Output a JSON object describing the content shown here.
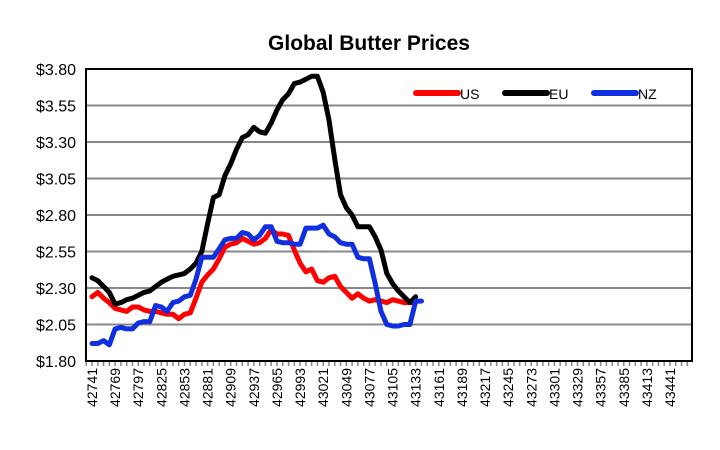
{
  "chart_data": {
    "type": "line",
    "title": "Global Butter Prices",
    "xlabel": "",
    "ylabel": "",
    "ylim": [
      1.8,
      3.8
    ],
    "ytick_step": 0.25,
    "y_tick_labels": [
      "$1.80",
      "$2.05",
      "$2.30",
      "$2.55",
      "$2.80",
      "$3.05",
      "$3.30",
      "$3.55",
      "$3.80"
    ],
    "xlim": [
      42734,
      43464
    ],
    "x_tick_labels": [
      "42741",
      "42769",
      "42797",
      "42825",
      "42853",
      "42881",
      "42909",
      "42937",
      "42965",
      "42993",
      "43021",
      "43049",
      "43077",
      "43105",
      "43133",
      "43161",
      "43189",
      "43217",
      "43245",
      "43273",
      "43301",
      "43329",
      "43357",
      "43385",
      "43413",
      "43441"
    ],
    "x_tick_values": [
      42741,
      42769,
      42797,
      42825,
      42853,
      42881,
      42909,
      42937,
      42965,
      42993,
      43021,
      43049,
      43077,
      43105,
      43133,
      43161,
      43189,
      43217,
      43245,
      43273,
      43301,
      43329,
      43357,
      43385,
      43413,
      43441
    ],
    "minor_tick_interval_days": 7,
    "grid": true,
    "legend": {
      "position": "top-right",
      "orientation": "horizontal"
    },
    "x_start": 42741,
    "x_interval_days": 7,
    "series": [
      {
        "name": "US",
        "color": "#ff0000",
        "values": [
          2.24,
          2.27,
          2.23,
          2.2,
          2.16,
          2.15,
          2.14,
          2.17,
          2.17,
          2.15,
          2.14,
          2.14,
          2.13,
          2.12,
          2.12,
          2.09,
          2.12,
          2.13,
          2.23,
          2.34,
          2.39,
          2.43,
          2.5,
          2.58,
          2.6,
          2.61,
          2.64,
          2.62,
          2.6,
          2.61,
          2.64,
          2.7,
          2.67,
          2.67,
          2.66,
          2.56,
          2.47,
          2.41,
          2.43,
          2.35,
          2.34,
          2.37,
          2.38,
          2.31,
          2.27,
          2.23,
          2.26,
          2.23,
          2.21,
          2.22,
          2.21,
          2.2,
          2.22,
          2.21,
          2.2,
          2.2,
          2.2
        ]
      },
      {
        "name": "EU",
        "color": "#000000",
        "values": [
          2.37,
          2.35,
          2.31,
          2.27,
          2.19,
          2.2,
          2.22,
          2.23,
          2.25,
          2.27,
          2.28,
          2.31,
          2.34,
          2.36,
          2.38,
          2.39,
          2.4,
          2.43,
          2.47,
          2.55,
          2.74,
          2.92,
          2.94,
          3.07,
          3.15,
          3.25,
          3.33,
          3.35,
          3.4,
          3.37,
          3.36,
          3.43,
          3.52,
          3.59,
          3.63,
          3.7,
          3.71,
          3.73,
          3.75,
          3.75,
          3.64,
          3.45,
          3.18,
          2.94,
          2.85,
          2.8,
          2.72,
          2.72,
          2.72,
          2.65,
          2.56,
          2.4,
          2.33,
          2.28,
          2.24,
          2.2,
          2.24
        ]
      },
      {
        "name": "NZ",
        "color": "#1030e0",
        "values": [
          1.92,
          1.92,
          1.94,
          1.91,
          2.02,
          2.03,
          2.02,
          2.02,
          2.06,
          2.07,
          2.07,
          2.18,
          2.17,
          2.14,
          2.2,
          2.21,
          2.24,
          2.25,
          2.36,
          2.51,
          2.51,
          2.51,
          2.57,
          2.63,
          2.64,
          2.64,
          2.68,
          2.67,
          2.63,
          2.66,
          2.72,
          2.72,
          2.62,
          2.61,
          2.61,
          2.6,
          2.6,
          2.71,
          2.71,
          2.71,
          2.73,
          2.67,
          2.65,
          2.61,
          2.6,
          2.6,
          2.51,
          2.5,
          2.5,
          2.33,
          2.14,
          2.05,
          2.04,
          2.04,
          2.05,
          2.05,
          2.21,
          2.21
        ]
      }
    ]
  }
}
